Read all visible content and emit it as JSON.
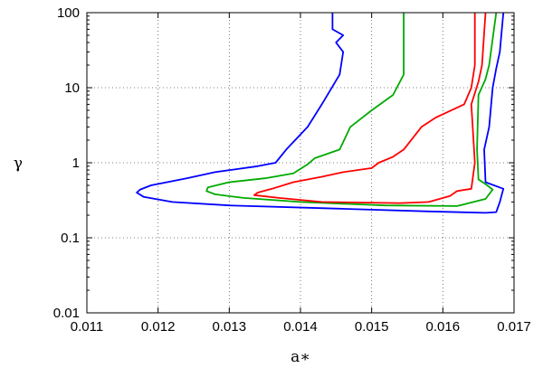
{
  "chart_data": {
    "type": "line",
    "title": "",
    "xlabel": "a∗",
    "ylabel": "γ",
    "xlim": [
      0.011,
      0.017
    ],
    "ylim": [
      0.01,
      100
    ],
    "yscale": "log",
    "grid": true,
    "x_ticks": [
      "0.011",
      "0.012",
      "0.013",
      "0.014",
      "0.015",
      "0.016",
      "0.017"
    ],
    "y_ticks": [
      "0.01",
      "0.1",
      "1",
      "10",
      "100"
    ],
    "series": [
      {
        "color": "#0000ff",
        "points": [
          [
            0.01445,
            100
          ],
          [
            0.01445,
            60
          ],
          [
            0.0146,
            50
          ],
          [
            0.0145,
            40
          ],
          [
            0.0146,
            30
          ],
          [
            0.01455,
            15
          ],
          [
            0.0143,
            6
          ],
          [
            0.0141,
            3
          ],
          [
            0.0138,
            1.5
          ],
          [
            0.01365,
            1.0
          ],
          [
            0.0134,
            0.9
          ],
          [
            0.0128,
            0.75
          ],
          [
            0.0124,
            0.62
          ],
          [
            0.0119,
            0.5
          ],
          [
            0.01175,
            0.44
          ],
          [
            0.0117,
            0.4
          ],
          [
            0.0118,
            0.35
          ],
          [
            0.0122,
            0.3
          ],
          [
            0.013,
            0.27
          ],
          [
            0.0145,
            0.245
          ],
          [
            0.0158,
            0.225
          ],
          [
            0.0166,
            0.215
          ],
          [
            0.01675,
            0.22
          ],
          [
            0.0168,
            0.3
          ],
          [
            0.01685,
            0.45
          ],
          [
            0.0166,
            0.55
          ],
          [
            0.01658,
            1.5
          ],
          [
            0.01665,
            3
          ],
          [
            0.0167,
            10
          ],
          [
            0.01675,
            18
          ],
          [
            0.0168,
            30
          ],
          [
            0.01685,
            100
          ]
        ]
      },
      {
        "color": "#00aa00",
        "points": [
          [
            0.01545,
            100
          ],
          [
            0.01545,
            40
          ],
          [
            0.01545,
            15
          ],
          [
            0.0153,
            8
          ],
          [
            0.015,
            5
          ],
          [
            0.0147,
            3
          ],
          [
            0.01455,
            1.5
          ],
          [
            0.0142,
            1.15
          ],
          [
            0.0141,
            0.95
          ],
          [
            0.0139,
            0.72
          ],
          [
            0.0135,
            0.62
          ],
          [
            0.013,
            0.55
          ],
          [
            0.0127,
            0.47
          ],
          [
            0.01268,
            0.42
          ],
          [
            0.0128,
            0.38
          ],
          [
            0.0132,
            0.34
          ],
          [
            0.014,
            0.3
          ],
          [
            0.0152,
            0.27
          ],
          [
            0.0162,
            0.265
          ],
          [
            0.0166,
            0.33
          ],
          [
            0.0167,
            0.44
          ],
          [
            0.0166,
            0.52
          ],
          [
            0.0165,
            0.6
          ],
          [
            0.01648,
            1.5
          ],
          [
            0.0165,
            8
          ],
          [
            0.0166,
            13
          ],
          [
            0.01665,
            20
          ],
          [
            0.01675,
            100
          ]
        ]
      },
      {
        "color": "#ff0000",
        "points": [
          [
            0.01645,
            100
          ],
          [
            0.01645,
            20
          ],
          [
            0.0164,
            10
          ],
          [
            0.0163,
            6
          ],
          [
            0.0159,
            4
          ],
          [
            0.0157,
            3
          ],
          [
            0.01545,
            1.5
          ],
          [
            0.0153,
            1.2
          ],
          [
            0.0151,
            1.0
          ],
          [
            0.015,
            0.85
          ],
          [
            0.0146,
            0.75
          ],
          [
            0.0143,
            0.65
          ],
          [
            0.0139,
            0.55
          ],
          [
            0.0136,
            0.45
          ],
          [
            0.0134,
            0.4
          ],
          [
            0.01335,
            0.37
          ],
          [
            0.0137,
            0.34
          ],
          [
            0.0143,
            0.3
          ],
          [
            0.0154,
            0.29
          ],
          [
            0.0158,
            0.3
          ],
          [
            0.0161,
            0.36
          ],
          [
            0.0162,
            0.42
          ],
          [
            0.0164,
            0.45
          ],
          [
            0.01645,
            1.0
          ],
          [
            0.0164,
            6
          ],
          [
            0.0165,
            12
          ],
          [
            0.01655,
            20
          ],
          [
            0.0166,
            100
          ]
        ]
      }
    ]
  }
}
